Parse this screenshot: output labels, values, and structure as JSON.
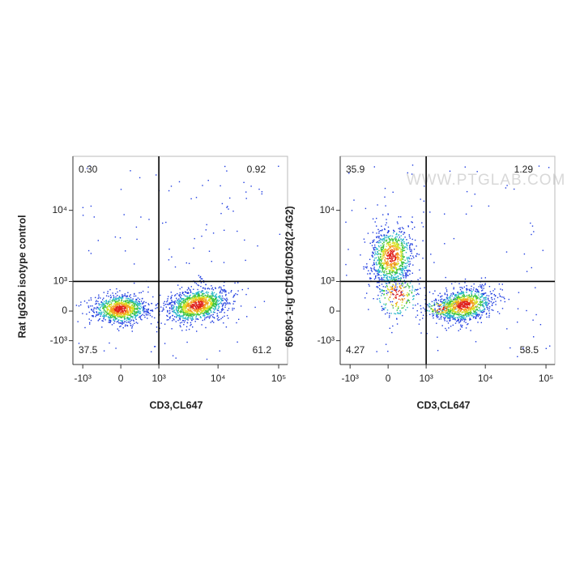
{
  "chart_data": [
    {
      "type": "flow",
      "xlabel": "CD3,CL647",
      "ylabel": "Rat IgG2b isotype control",
      "xlim": [
        -1500,
        140000
      ],
      "ylim": [
        -2350,
        50000
      ],
      "xticks": [
        {
          "value": -1000,
          "label": "-10³"
        },
        0,
        {
          "value": 1000,
          "label": "10³"
        },
        {
          "value": 10000,
          "label": "10⁴"
        },
        {
          "value": 100000,
          "label": "10⁵"
        }
      ],
      "yticks": [
        {
          "value": -1000,
          "label": "-10³"
        },
        0,
        {
          "value": 1000,
          "label": "10³"
        },
        {
          "value": 10000,
          "label": "10⁴"
        }
      ],
      "gates": {
        "x": 1000,
        "y": 1000
      },
      "quadrants": {
        "values": [
          0.3,
          0.92,
          37.5,
          61.2
        ],
        "value_labels": [
          "0.30",
          "0.92",
          "37.5",
          "61.2"
        ]
      }
    },
    {
      "type": "flow",
      "xlabel": "CD3,CL647",
      "ylabel": "65080-1-Ig CD16/CD32(2.4G2)",
      "xlim": [
        -1500,
        140000
      ],
      "ylim": [
        -2350,
        50000
      ],
      "xticks": [
        {
          "value": -1000,
          "label": "-10³"
        },
        0,
        {
          "value": 1000,
          "label": "10³"
        },
        {
          "value": 10000,
          "label": "10⁴"
        },
        {
          "value": 100000,
          "label": "10⁵"
        }
      ],
      "yticks": [
        {
          "value": -1000,
          "label": "-10³"
        },
        0,
        {
          "value": 1000,
          "label": "10³"
        },
        {
          "value": 10000,
          "label": "10⁴"
        }
      ],
      "gates": {
        "x": 1000,
        "y": 1000
      },
      "quadrants": {
        "values": [
          35.9,
          1.29,
          4.27,
          58.5
        ],
        "value_labels": [
          "35.9",
          "1.29",
          "4.27",
          "58.5"
        ]
      },
      "watermark": "WWW.PTGLAB.COM"
    }
  ]
}
